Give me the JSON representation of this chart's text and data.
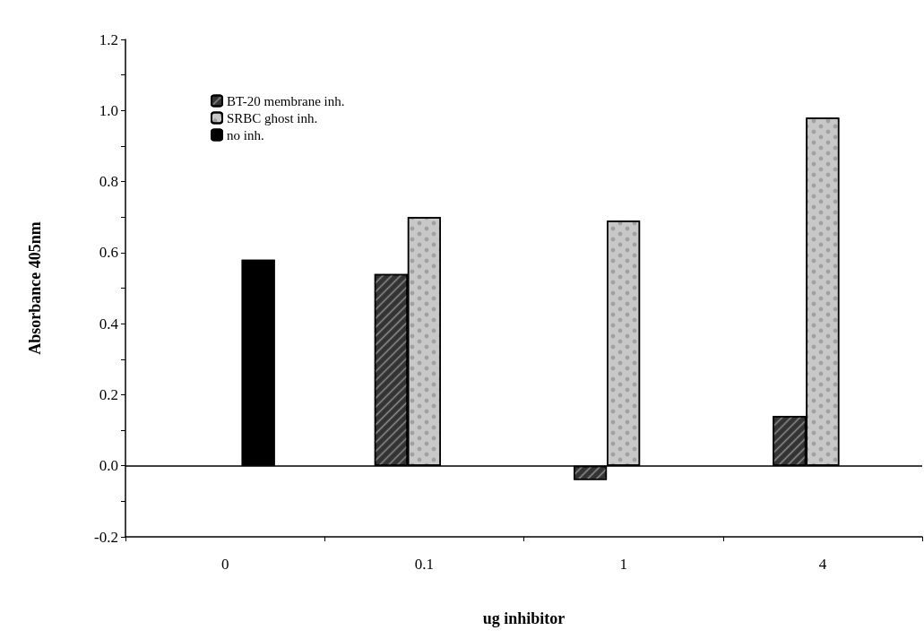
{
  "chart_data": {
    "type": "bar",
    "xlabel": "ug inhibitor",
    "ylabel": "Absorbance 405nm",
    "categories": [
      "0",
      "0.1",
      "1",
      "4"
    ],
    "series": [
      {
        "name": "BT-20 membrane inh.",
        "color": "#333333",
        "values": [
          null,
          0.54,
          -0.04,
          0.14
        ]
      },
      {
        "name": "SRBC ghost inh.",
        "color": "#c8c8c8",
        "values": [
          null,
          0.7,
          0.69,
          0.98
        ]
      },
      {
        "name": "no inh.",
        "color": "#000000",
        "values": [
          0.58,
          null,
          null,
          null
        ]
      }
    ],
    "ylim": [
      -0.2,
      1.2
    ],
    "yticks": [
      {
        "value": -0.2,
        "label": "-0.2"
      },
      {
        "value": -0.1,
        "label": null
      },
      {
        "value": 0,
        "label": "0.0"
      },
      {
        "value": 0.1,
        "label": null
      },
      {
        "value": 0.2,
        "label": "0.2"
      },
      {
        "value": 0.3,
        "label": null
      },
      {
        "value": 0.4,
        "label": "0.4"
      },
      {
        "value": 0.5,
        "label": null
      },
      {
        "value": 0.6,
        "label": "0.6"
      },
      {
        "value": 0.7,
        "label": null
      },
      {
        "value": 0.8,
        "label": "0.8"
      },
      {
        "value": 0.9,
        "label": null
      },
      {
        "value": 1.0,
        "label": "1.0"
      },
      {
        "value": 1.1,
        "label": null
      },
      {
        "value": 1.2,
        "label": "1.2"
      }
    ],
    "ref_lines": [
      {
        "axis": "y",
        "value": 0,
        "color": "#000000"
      }
    ],
    "legend": "top left",
    "grid": false
  }
}
